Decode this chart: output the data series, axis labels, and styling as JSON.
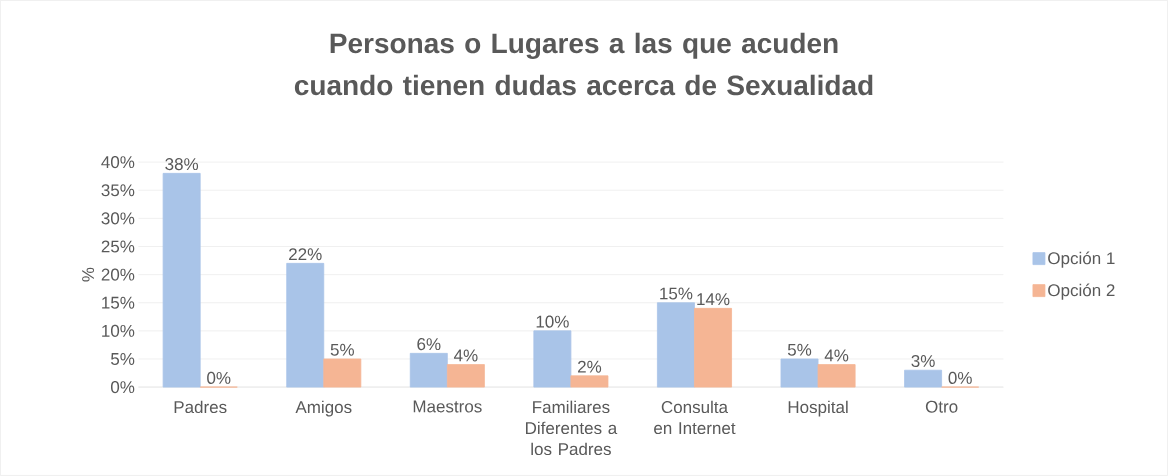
{
  "chart_data": {
    "type": "bar",
    "title": "Personas o Lugares a las que acuden cuando tienen dudas acerca de Sexualidad",
    "ylabel": "%",
    "categories": [
      "Padres",
      "Amigos",
      "Maestros",
      "Familiares Diferentes a los Padres",
      "Consulta en Internet",
      "Hospital",
      "Otro"
    ],
    "series": [
      {
        "name": "Opción 1",
        "color": "#a9c4e8",
        "values": [
          38,
          22,
          6,
          10,
          15,
          5,
          3
        ],
        "value_labels": [
          "38%",
          "22%",
          "6%",
          "10%",
          "15%",
          "5%",
          "3%"
        ]
      },
      {
        "name": "Opción 2",
        "color": "#f5b594",
        "values": [
          0,
          5,
          4,
          2,
          14,
          4,
          0
        ],
        "value_labels": [
          "0%",
          "5%",
          "4%",
          "2%",
          "14%",
          "4%",
          "0%"
        ]
      }
    ],
    "ylim": [
      0,
      40
    ],
    "yticks": [
      {
        "value": 0,
        "label": "0%"
      },
      {
        "value": 5,
        "label": "5%"
      },
      {
        "value": 10,
        "label": "10%"
      },
      {
        "value": 15,
        "label": "15%"
      },
      {
        "value": 20,
        "label": "20%"
      },
      {
        "value": 25,
        "label": "25%"
      },
      {
        "value": 30,
        "label": "30%"
      },
      {
        "value": 35,
        "label": "35%"
      },
      {
        "value": 40,
        "label": "40%"
      }
    ],
    "grid": "y",
    "legend": "right"
  }
}
